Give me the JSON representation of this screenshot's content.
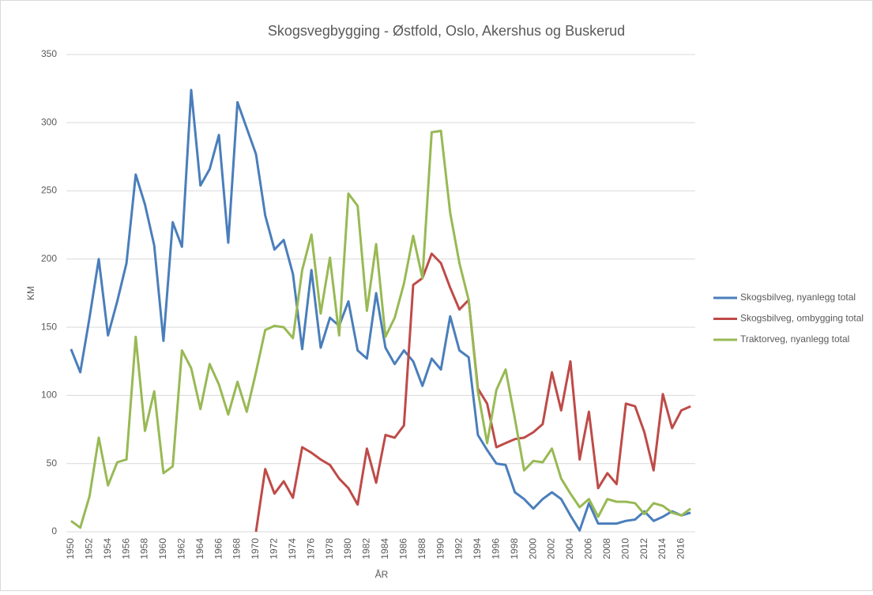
{
  "chart_data": {
    "type": "line",
    "title": "Skogsvegbygging - Østfold, Oslo, Akershus og Buskerud",
    "xlabel": "ÅR",
    "ylabel": "KM",
    "categories": [
      "1950",
      null,
      "1952",
      null,
      "1954",
      null,
      "1956",
      null,
      "1958",
      null,
      "1960",
      null,
      "1962",
      null,
      "1964",
      null,
      "1966",
      null,
      "1968",
      null,
      "1970",
      null,
      "1972",
      null,
      "1974",
      null,
      "1976",
      null,
      "1978",
      null,
      "1980",
      null,
      "1982",
      null,
      "1984",
      null,
      "1986",
      null,
      "1988",
      null,
      "1990",
      null,
      "1992",
      null,
      "1994",
      null,
      "1996",
      null,
      "1998",
      null,
      "2000",
      null,
      "2002",
      null,
      "2004",
      null,
      "2006",
      null,
      "2008",
      null,
      "2010",
      null,
      "2012",
      null,
      "2014",
      null,
      "2016",
      null
    ],
    "series": [
      {
        "name": "Skogsbilveg, nyanlegg total",
        "color": "#4a7ebb",
        "values": [
          134,
          117,
          157,
          200,
          144,
          169,
          197,
          262,
          240,
          210,
          140,
          227,
          209,
          324,
          254,
          266,
          291,
          212,
          315,
          296,
          277,
          232,
          207,
          214,
          189,
          134,
          192,
          135,
          157,
          151,
          169,
          133,
          127,
          175,
          135,
          123,
          133,
          125,
          107,
          127,
          119,
          158,
          133,
          128,
          71,
          60,
          50,
          49,
          29,
          24,
          17,
          24,
          29,
          24,
          12,
          1,
          21,
          6,
          6,
          6,
          8,
          9,
          15,
          8,
          11,
          15,
          12,
          14
        ]
      },
      {
        "name": "Skogsbilveg, ombygging total",
        "color": "#be4b48",
        "values": [
          null,
          null,
          null,
          null,
          null,
          null,
          null,
          null,
          null,
          null,
          null,
          null,
          null,
          null,
          null,
          null,
          null,
          null,
          null,
          null,
          0,
          46,
          28,
          37,
          25,
          62,
          58,
          53,
          49,
          39,
          32,
          20,
          61,
          36,
          71,
          69,
          78,
          181,
          186,
          204,
          197,
          179,
          163,
          170,
          105,
          94,
          62,
          65,
          68,
          69,
          73,
          79,
          117,
          89,
          125,
          53,
          88,
          32,
          43,
          35,
          94,
          92,
          73,
          45,
          101,
          76,
          89,
          92
        ]
      },
      {
        "name": "Traktorveg, nyanlegg total",
        "color": "#98b954",
        "values": [
          8,
          3,
          26,
          69,
          34,
          51,
          53,
          143,
          74,
          103,
          43,
          48,
          133,
          120,
          90,
          123,
          108,
          86,
          110,
          88,
          117,
          148,
          151,
          150,
          142,
          192,
          218,
          160,
          201,
          144,
          248,
          239,
          162,
          211,
          143,
          157,
          182,
          217,
          186,
          293,
          294,
          234,
          197,
          170,
          103,
          65,
          104,
          119,
          83,
          45,
          52,
          51,
          61,
          39,
          28,
          18,
          24,
          11,
          24,
          22,
          22,
          21,
          13,
          21,
          19,
          14,
          12,
          17
        ]
      }
    ],
    "ylim": [
      0,
      350
    ],
    "yticks": [
      0,
      50,
      100,
      150,
      200,
      250,
      300,
      350
    ],
    "grid": true,
    "legend": "right"
  }
}
